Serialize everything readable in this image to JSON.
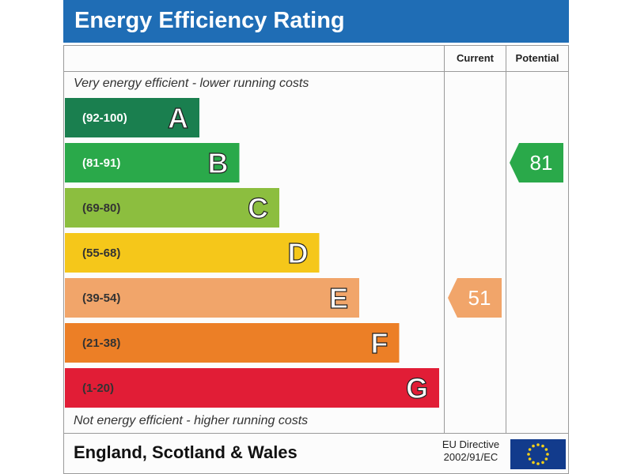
{
  "title": "Energy Efficiency Rating",
  "columns": {
    "current": "Current",
    "potential": "Potential"
  },
  "top_note": "Very energy efficient - lower running costs",
  "bottom_note": "Not energy efficient - higher running costs",
  "footer": {
    "region": "England, Scotland & Wales",
    "directive_line1": "EU Directive",
    "directive_line2": "2002/91/EC"
  },
  "chart_data": {
    "type": "bar",
    "categories": [
      "A",
      "B",
      "C",
      "D",
      "E",
      "F",
      "G"
    ],
    "ranges": [
      "(92-100)",
      "(81-91)",
      "(69-80)",
      "(55-68)",
      "(39-54)",
      "(21-38)",
      "(1-20)"
    ],
    "colors": [
      "#1a7f4f",
      "#2aa94a",
      "#8cbe3f",
      "#f5c71a",
      "#f1a56a",
      "#ec7f26",
      "#e11d36"
    ],
    "range_text_colors": [
      "#ffffff",
      "#ffffff",
      "#333333",
      "#333333",
      "#333333",
      "#333333",
      "#333333"
    ],
    "current": {
      "value": 51,
      "band": "E",
      "color": "#f1a56a"
    },
    "potential": {
      "value": 81,
      "band": "B",
      "color": "#2aa94a"
    }
  }
}
